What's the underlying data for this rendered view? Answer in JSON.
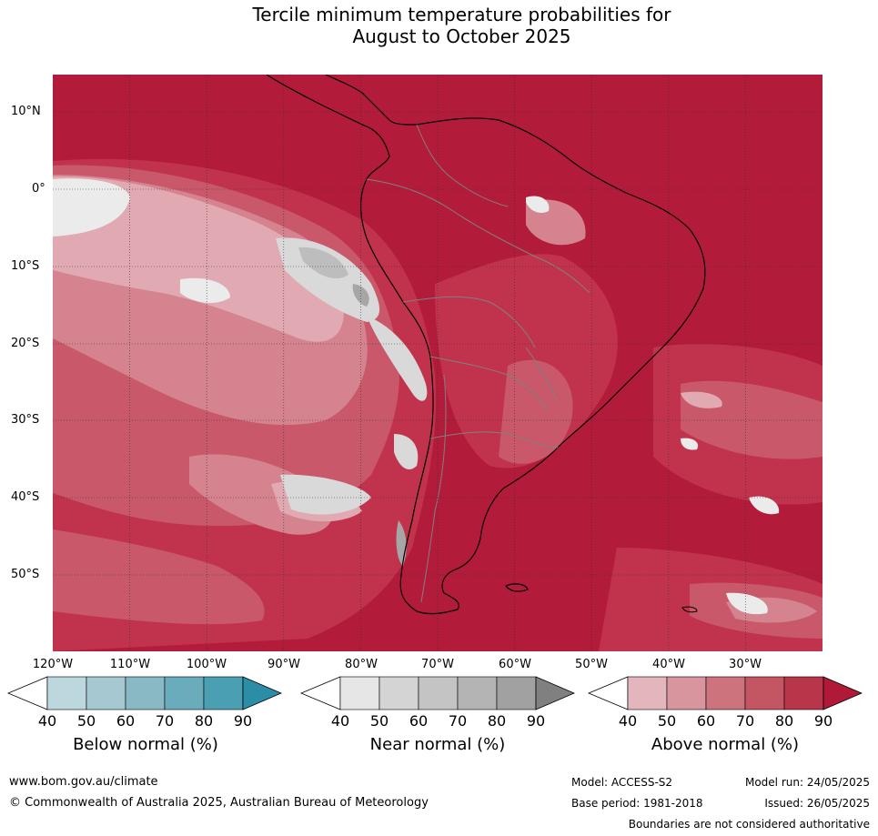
{
  "title": {
    "line1": "Tercile minimum temperature probabilities for",
    "line2": "August to October 2025"
  },
  "map": {
    "lat_labels": [
      "10°N",
      "0°",
      "10°S",
      "20°S",
      "30°S",
      "40°S",
      "50°S"
    ],
    "lon_labels": [
      "120°W",
      "110°W",
      "100°W",
      "90°W",
      "80°W",
      "70°W",
      "60°W",
      "50°W",
      "40°W",
      "30°W"
    ],
    "colors": {
      "above_90": "#b31b3a",
      "above_80": "#c1334c",
      "above_70": "#c8586a",
      "above_60": "#d4838f",
      "above_50": "#e1aab2",
      "near_40": "#ebebeb",
      "near_50": "#d9d9d9",
      "near_60": "#bdbdbd",
      "near_70": "#a6a6a6",
      "coast": "#000000",
      "borders": "#808080",
      "grid": "#333333"
    }
  },
  "legends": [
    {
      "name": "Below normal (%)",
      "ticks": [
        "40",
        "50",
        "60",
        "70",
        "80",
        "90"
      ],
      "colors": [
        "#ffffff",
        "#bdd7de",
        "#a6c9d1",
        "#8ab9c6",
        "#6aacbc",
        "#4aa0b2",
        "#2b8ea6"
      ]
    },
    {
      "name": "Near normal (%)",
      "ticks": [
        "40",
        "50",
        "60",
        "70",
        "80",
        "90"
      ],
      "colors": [
        "#ffffff",
        "#e6e6e6",
        "#d4d4d4",
        "#c4c4c4",
        "#b4b4b4",
        "#a1a1a1",
        "#808080"
      ]
    },
    {
      "name": "Above normal (%)",
      "ticks": [
        "40",
        "50",
        "60",
        "70",
        "80",
        "90"
      ],
      "colors": [
        "#ffffff",
        "#e2b6bc",
        "#d8959e",
        "#cc737e",
        "#c45664",
        "#b8354a",
        "#b01a38"
      ]
    }
  ],
  "footer": {
    "website": "www.bom.gov.au/climate",
    "copyright": "© Commonwealth of Australia 2025, Australian Bureau of Meteorology",
    "model": "Model: ACCESS-S2",
    "model_run": "Model run: 24/05/2025",
    "base_period": "Base period: 1981-2018",
    "issued": "Issued: 26/05/2025",
    "disclaimer": "Boundaries are not considered authoritative"
  }
}
